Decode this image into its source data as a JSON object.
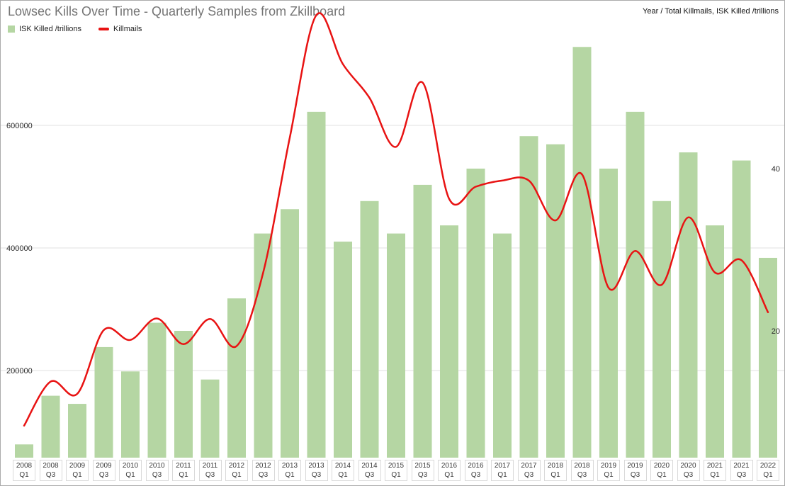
{
  "chart": {
    "title": "Lowsec Kills Over Time - Quarterly Samples from Zkillboard",
    "top_right_label": "Year / Total Killmails, ISK Killed /trillions",
    "legend": [
      {
        "label": "ISK Killed /trillions",
        "type": "bar",
        "color": "#b5d6a3"
      },
      {
        "label": "Killmails",
        "type": "line",
        "color": "#e81313"
      }
    ]
  },
  "chart_data": {
    "type": "bar+line combo",
    "title": "Lowsec Kills Over Time - Quarterly Samples from Zkillboard",
    "categories": [
      "2008 Q1",
      "2008 Q3",
      "2009 Q1",
      "2009 Q3",
      "2010 Q1",
      "2010 Q3",
      "2011 Q1",
      "2011 Q3",
      "2012 Q1",
      "2012 Q3",
      "2013 Q1",
      "2013 Q3",
      "2014 Q1",
      "2014 Q3",
      "2015 Q1",
      "2015 Q3",
      "2016 Q1",
      "2016 Q3",
      "2017 Q1",
      "2017 Q3",
      "2018 Q1",
      "2018 Q3",
      "2019 Q1",
      "2019 Q3",
      "2020 Q1",
      "2020 Q3",
      "2021 Q1",
      "2021 Q3",
      "2022 Q1"
    ],
    "series": [
      {
        "name": "ISK Killed /trillions",
        "type": "bar",
        "axis": "right",
        "color": "#b5d6a3",
        "values": [
          6,
          12,
          11,
          18,
          15,
          21,
          20,
          14,
          24,
          32,
          35,
          47,
          31,
          36,
          32,
          38,
          33,
          40,
          32,
          44,
          43,
          55,
          40,
          47,
          36,
          42,
          33,
          41,
          29
        ]
      },
      {
        "name": "Killmails",
        "type": "line",
        "axis": "left",
        "color": "#e81313",
        "values": [
          110000,
          182000,
          162000,
          266000,
          250000,
          285000,
          243000,
          284000,
          240000,
          360000,
          580000,
          780000,
          700000,
          645000,
          565000,
          670000,
          480000,
          500000,
          510000,
          510000,
          445000,
          520000,
          335000,
          395000,
          340000,
          450000,
          360000,
          380000,
          295000
        ]
      }
    ],
    "left_axis": {
      "label": "Killmails",
      "ticks": [
        200000,
        400000,
        600000
      ]
    },
    "right_axis": {
      "label": "ISK Killed /trillions",
      "ticks": [
        20,
        40
      ]
    },
    "grid": true,
    "legend_position": "top-left"
  }
}
